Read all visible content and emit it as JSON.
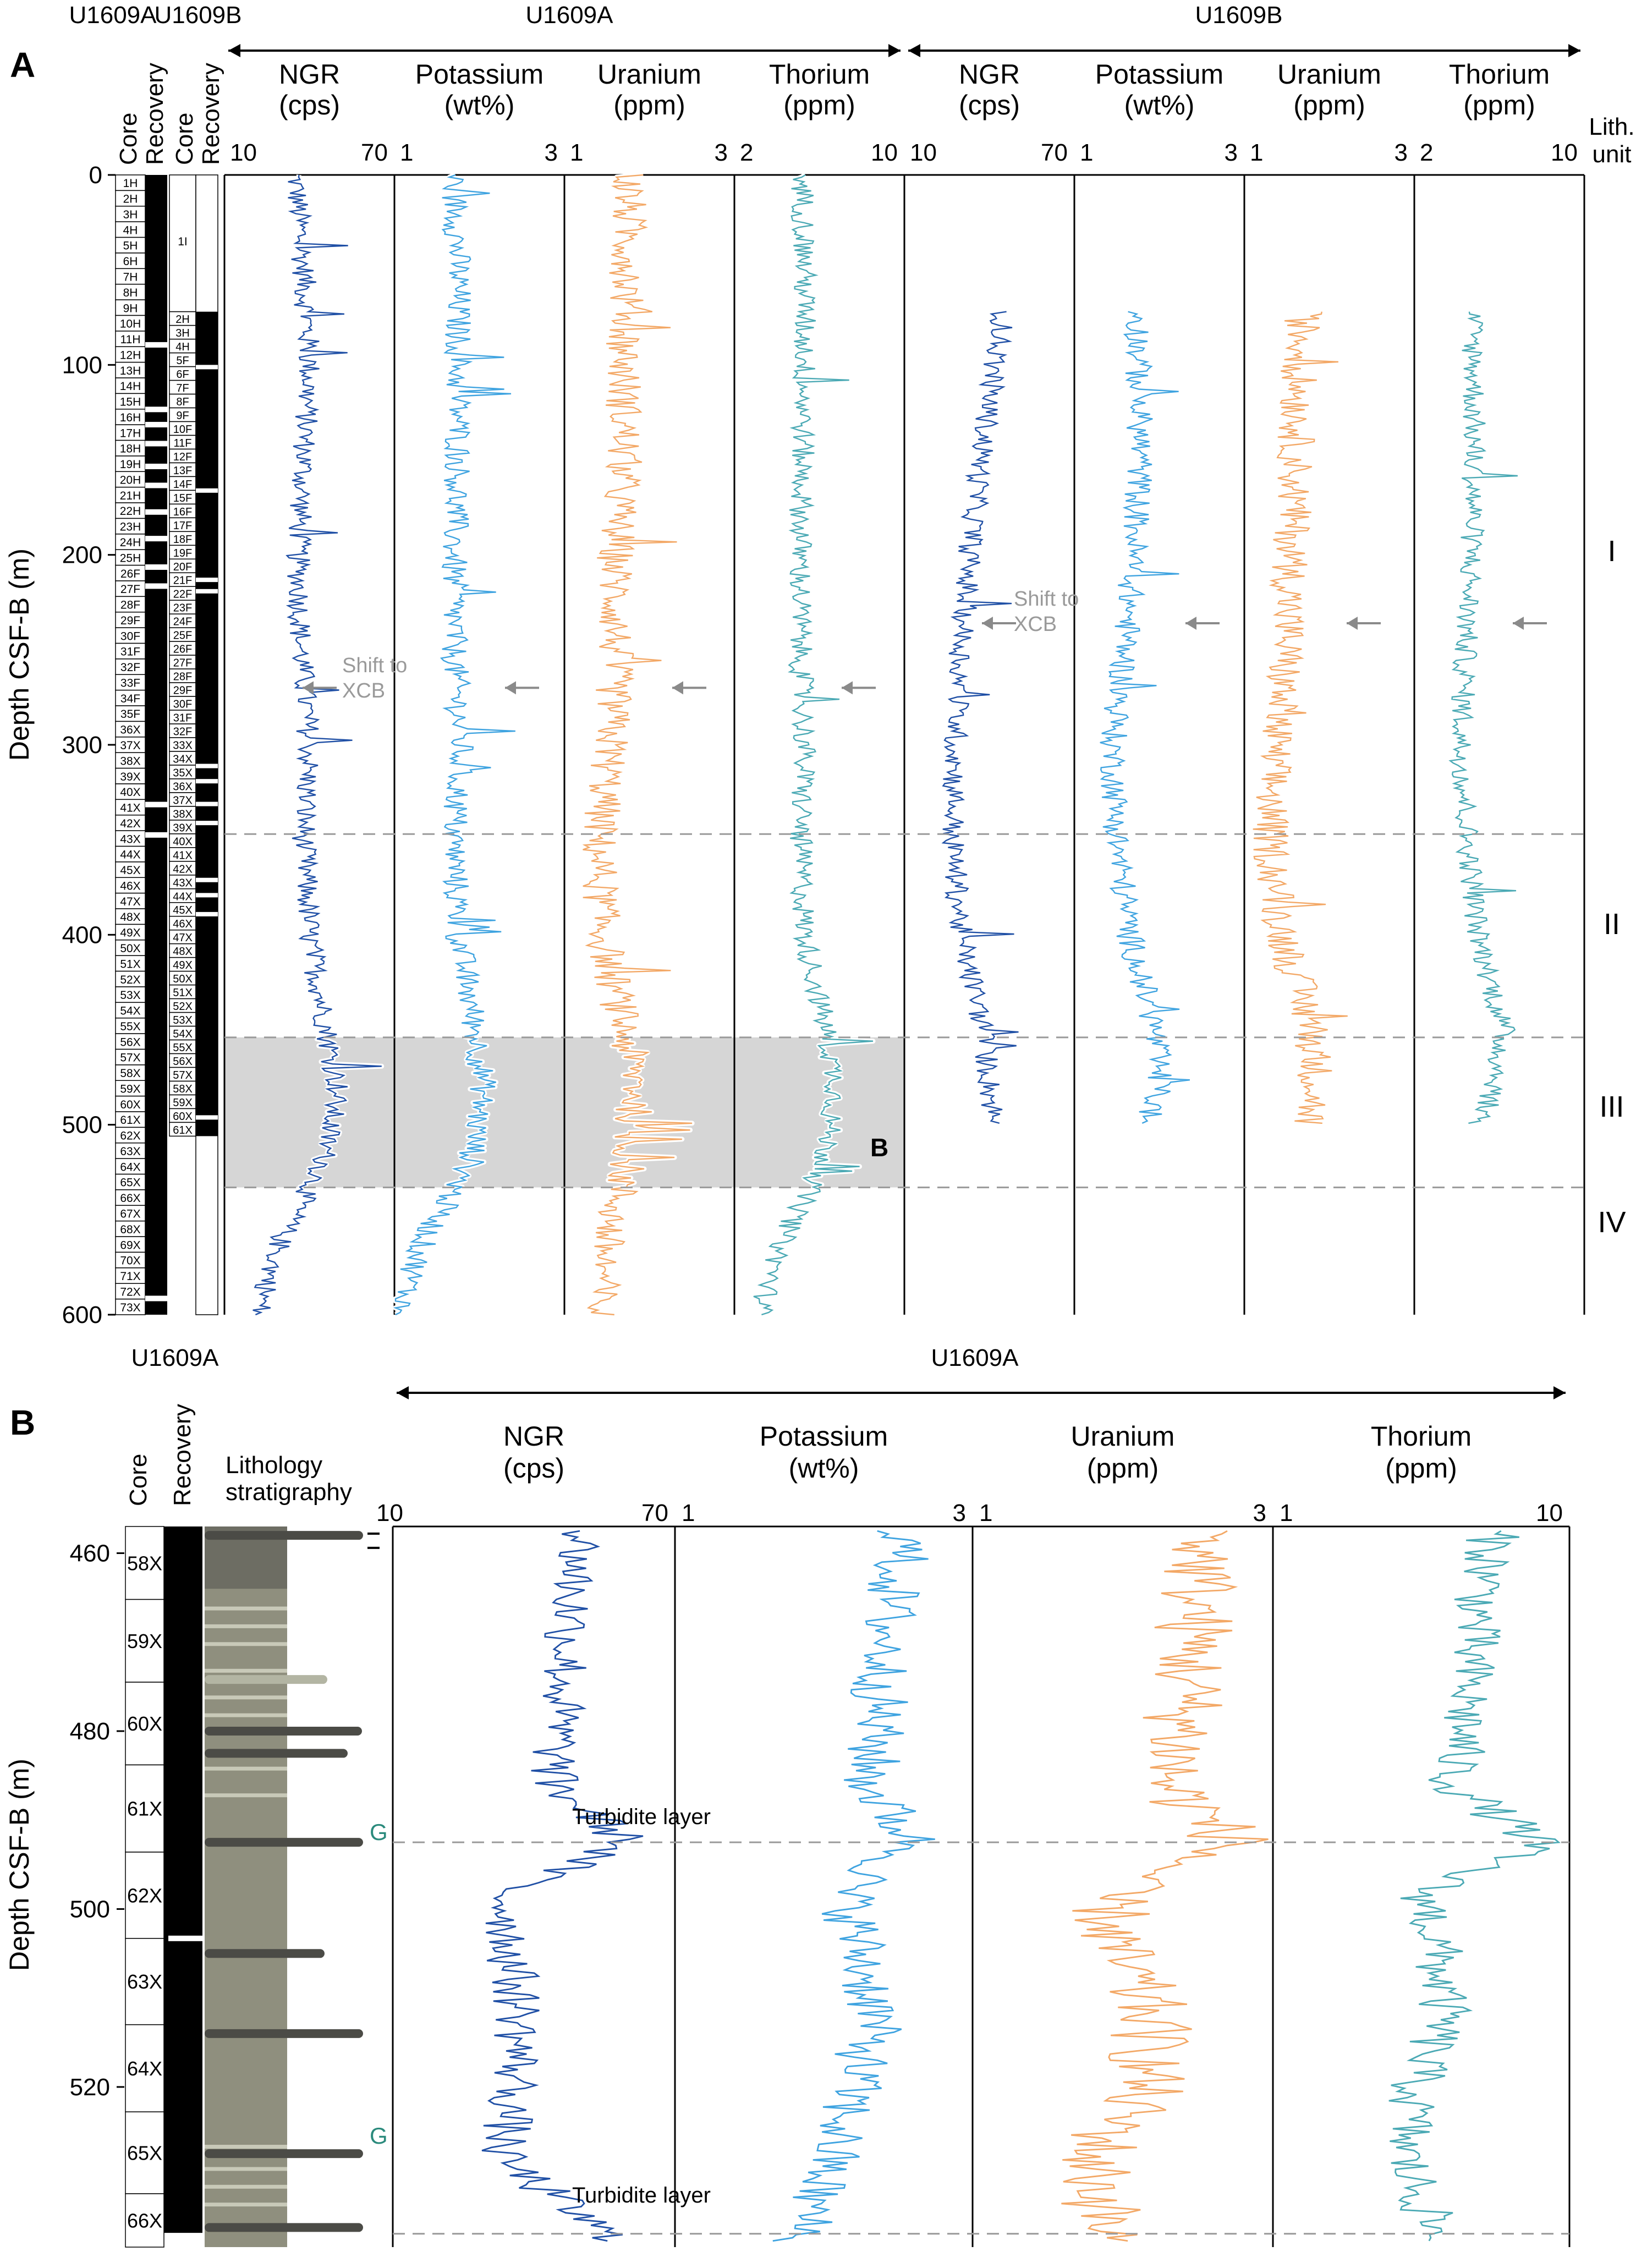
{
  "colors": {
    "ngr": "#1f4fa5",
    "potassium": "#3ea3e0",
    "uranium": "#f3a866",
    "thorium": "#4aa9b4",
    "highlight_band": "#d6d6d6",
    "dashed": "#9a9a9a",
    "arrow": "#8a8a8a",
    "lithology_fill": "#8f8f7e",
    "turbidite_layer": "#4b4b46",
    "glauconite_text": "#2a8a7c"
  },
  "panelA": {
    "label": "A",
    "hole_labels": [
      "U1609A",
      "U1609B"
    ],
    "col_headers": {
      "core": "Core",
      "recovery": "Recovery"
    },
    "group_A_label": "U1609A",
    "group_B_label": "U1609B",
    "lith_unit_header": [
      "Lith.",
      "unit"
    ],
    "ylabel": "Depth CSF-B (m)",
    "y_ticks": [
      "0",
      "100",
      "200",
      "300",
      "400",
      "500",
      "600"
    ],
    "shift_label": [
      "Shift to",
      "XCB"
    ],
    "zoom_label": "B",
    "tracks": [
      {
        "title": "NGR",
        "unit": "(cps)",
        "min": "10",
        "max": "70"
      },
      {
        "title": "Potassium",
        "unit": "(wt%)",
        "min": "1",
        "max": "3"
      },
      {
        "title": "Uranium",
        "unit": "(ppm)",
        "min": "1",
        "max": "3"
      },
      {
        "title": "Thorium",
        "unit": "(ppm)",
        "min": "2",
        "max": "10"
      },
      {
        "title": "NGR",
        "unit": "(cps)",
        "min": "10",
        "max": "70"
      },
      {
        "title": "Potassium",
        "unit": "(wt%)",
        "min": "1",
        "max": "3"
      },
      {
        "title": "Uranium",
        "unit": "(ppm)",
        "min": "1",
        "max": "3"
      },
      {
        "title": "Thorium",
        "unit": "(ppm)",
        "min": "2",
        "max": "10"
      }
    ],
    "lith_units": [
      "I",
      "II",
      "III",
      "IV"
    ],
    "cores_A": [
      "1H",
      "2H",
      "3H",
      "4H",
      "5H",
      "6H",
      "7H",
      "8H",
      "9H",
      "10H",
      "11H",
      "12H",
      "13H",
      "14H",
      "15H",
      "16H",
      "17H",
      "18H",
      "19H",
      "20H",
      "21H",
      "22H",
      "23H",
      "24H",
      "25H",
      "26F",
      "27F",
      "28F",
      "29F",
      "30F",
      "31F",
      "32F",
      "33F",
      "34F",
      "35F",
      "36X",
      "37X",
      "38X",
      "39X",
      "40X",
      "41X",
      "42X",
      "43X",
      "44X",
      "45X",
      "46X",
      "47X",
      "48X",
      "49X",
      "50X",
      "51X",
      "52X",
      "53X",
      "54X",
      "55X",
      "56X",
      "57X",
      "58X",
      "59X",
      "60X",
      "61X",
      "62X",
      "63X",
      "64X",
      "65X",
      "66X",
      "67X",
      "68X",
      "69X",
      "70X",
      "71X",
      "72X",
      "73X"
    ],
    "cores_B": [
      "1I",
      "2H",
      "3H",
      "4H",
      "5F",
      "6F",
      "7F",
      "8F",
      "9F",
      "10F",
      "11F",
      "12F",
      "13F",
      "14F",
      "15F",
      "16F",
      "17F",
      "18F",
      "19F",
      "20F",
      "21F",
      "22F",
      "23F",
      "24F",
      "25F",
      "26F",
      "27F",
      "28F",
      "29F",
      "30F",
      "31F",
      "32F",
      "33X",
      "34X",
      "35X",
      "36X",
      "37X",
      "38X",
      "39X",
      "40X",
      "41X",
      "42X",
      "43X",
      "44X",
      "45X",
      "46X",
      "47X",
      "48X",
      "49X",
      "50X",
      "51X",
      "52X",
      "53X",
      "54X",
      "55X",
      "56X",
      "57X",
      "58X",
      "59X",
      "60X",
      "61X"
    ]
  },
  "panelB": {
    "label": "B",
    "hole_label": "U1609A",
    "group_label": "U1609A",
    "col_headers": {
      "core": "Core",
      "recovery": "Recovery",
      "lithology": [
        "Lithology",
        "stratigraphy"
      ]
    },
    "ylabel": "Depth CSF-B (m)",
    "y_ticks": [
      "460",
      "480",
      "500",
      "520"
    ],
    "tracks": [
      {
        "title": "NGR",
        "unit": "(cps)",
        "min": "10",
        "max": "70"
      },
      {
        "title": "Potassium",
        "unit": "(wt%)",
        "min": "1",
        "max": "3"
      },
      {
        "title": "Uranium",
        "unit": "(ppm)",
        "min": "1",
        "max": "3"
      },
      {
        "title": "Thorium",
        "unit": "(ppm)",
        "min": "1",
        "max": "10"
      }
    ],
    "cores": [
      "58X",
      "59X",
      "60X",
      "61X",
      "62X",
      "63X",
      "64X",
      "65X",
      "66X"
    ],
    "turbidite_label": "Turbidite layer",
    "glauconite_label": "G"
  },
  "chart_data": [
    {
      "type": "line",
      "panel": "A",
      "ylabel": "Depth CSF-B (m)",
      "ylim": [
        0,
        600
      ],
      "y_inverted": true,
      "lith_unit_boundaries_m": [
        347,
        454,
        533
      ],
      "highlight_interval_m": [
        454,
        533
      ],
      "xcb_shift_depth_m": {
        "U1609A": 270,
        "U1609B": 236
      },
      "series": [
        {
          "hole": "U1609A",
          "name": "NGR",
          "unit": "cps",
          "xlim": [
            10,
            70
          ],
          "depth_range_m": [
            0,
            600
          ],
          "depth": [
            0,
            50,
            100,
            150,
            200,
            250,
            300,
            350,
            400,
            450,
            480,
            520,
            560,
            600
          ],
          "values": [
            35,
            38,
            40,
            38,
            36,
            37,
            40,
            38,
            40,
            46,
            50,
            45,
            30,
            22
          ]
        },
        {
          "hole": "U1609A",
          "name": "Potassium",
          "unit": "wt%",
          "xlim": [
            1,
            3
          ],
          "depth_range_m": [
            0,
            600
          ],
          "depth": [
            0,
            50,
            100,
            150,
            200,
            250,
            300,
            350,
            400,
            450,
            480,
            520,
            560,
            600
          ],
          "values": [
            1.7,
            1.75,
            1.75,
            1.75,
            1.7,
            1.7,
            1.78,
            1.7,
            1.75,
            1.95,
            2.05,
            1.9,
            1.35,
            1.05
          ]
        },
        {
          "hole": "U1609A",
          "name": "Uranium",
          "unit": "ppm",
          "xlim": [
            1,
            3
          ],
          "depth_range_m": [
            0,
            600
          ],
          "depth": [
            0,
            50,
            100,
            150,
            200,
            250,
            300,
            350,
            400,
            450,
            480,
            520,
            560,
            600
          ],
          "values": [
            1.75,
            1.75,
            1.7,
            1.7,
            1.6,
            1.6,
            1.55,
            1.4,
            1.45,
            1.7,
            1.85,
            1.75,
            1.5,
            1.4
          ]
        },
        {
          "hole": "U1609A",
          "name": "Thorium",
          "unit": "ppm",
          "xlim": [
            2,
            10
          ],
          "depth_range_m": [
            0,
            600
          ],
          "depth": [
            0,
            50,
            100,
            150,
            200,
            250,
            300,
            350,
            400,
            450,
            480,
            520,
            560,
            600
          ],
          "values": [
            5.2,
            5.3,
            5.3,
            5.2,
            5.1,
            5.1,
            5.3,
            5.1,
            5.3,
            6.3,
            6.8,
            6.2,
            4.3,
            3.2
          ]
        },
        {
          "hole": "U1609B",
          "name": "NGR",
          "unit": "cps",
          "xlim": [
            10,
            70
          ],
          "depth_range_m": [
            72,
            500
          ],
          "depth": [
            72,
            100,
            150,
            200,
            250,
            300,
            350,
            400,
            450,
            480,
            500
          ],
          "values": [
            45,
            42,
            37,
            33,
            30,
            28,
            27,
            30,
            38,
            40,
            42
          ]
        },
        {
          "hole": "U1609B",
          "name": "Potassium",
          "unit": "wt%",
          "xlim": [
            1,
            3
          ],
          "depth_range_m": [
            72,
            500
          ],
          "depth": [
            72,
            100,
            150,
            200,
            250,
            300,
            350,
            400,
            450,
            480,
            500
          ],
          "values": [
            1.75,
            1.75,
            1.78,
            1.7,
            1.6,
            1.45,
            1.5,
            1.65,
            1.95,
            2.0,
            1.85
          ]
        },
        {
          "hole": "U1609B",
          "name": "Uranium",
          "unit": "ppm",
          "xlim": [
            1,
            3
          ],
          "depth_range_m": [
            72,
            500
          ],
          "depth": [
            72,
            100,
            150,
            200,
            250,
            300,
            350,
            400,
            450,
            480,
            500
          ],
          "values": [
            1.7,
            1.65,
            1.6,
            1.55,
            1.5,
            1.35,
            1.3,
            1.45,
            1.8,
            1.85,
            1.75
          ]
        },
        {
          "hole": "U1609B",
          "name": "Thorium",
          "unit": "ppm",
          "xlim": [
            2,
            10
          ],
          "depth_range_m": [
            72,
            500
          ],
          "depth": [
            72,
            100,
            150,
            200,
            250,
            300,
            350,
            400,
            450,
            480,
            500
          ],
          "values": [
            4.7,
            4.8,
            4.8,
            4.7,
            4.4,
            4.2,
            4.5,
            5.0,
            6.2,
            5.8,
            5.0
          ]
        }
      ]
    },
    {
      "type": "line",
      "panel": "B",
      "ylabel": "Depth CSF-B (m)",
      "ylim": [
        457,
        538
      ],
      "y_inverted": true,
      "turbidite_depths_m": [
        492.5,
        536.5
      ],
      "series": [
        {
          "hole": "U1609A",
          "name": "NGR",
          "unit": "cps",
          "xlim": [
            10,
            70
          ],
          "depth": [
            458,
            465,
            472,
            480,
            486,
            492.5,
            498,
            505,
            512,
            520,
            528,
            536.5
          ],
          "values": [
            50,
            48,
            47,
            45,
            44,
            60,
            34,
            35,
            37,
            36,
            33,
            55
          ]
        },
        {
          "hole": "U1609A",
          "name": "Potassium",
          "unit": "wt%",
          "xlim": [
            1,
            3
          ],
          "depth": [
            458,
            465,
            472,
            480,
            486,
            492.5,
            498,
            505,
            512,
            520,
            528,
            536.5
          ],
          "values": [
            2.55,
            2.45,
            2.4,
            2.35,
            2.3,
            2.6,
            2.15,
            2.25,
            2.35,
            2.2,
            2.05,
            1.85
          ]
        },
        {
          "hole": "U1609A",
          "name": "Uranium",
          "unit": "ppm",
          "xlim": [
            1,
            3
          ],
          "depth": [
            458,
            465,
            472,
            480,
            486,
            492.5,
            498,
            505,
            512,
            520,
            528,
            536.5
          ],
          "values": [
            2.55,
            2.5,
            2.45,
            2.4,
            2.3,
            2.75,
            1.9,
            1.95,
            2.2,
            2.15,
            1.8,
            1.9
          ]
        },
        {
          "hole": "U1609A",
          "name": "Thorium",
          "unit": "ppm",
          "xlim": [
            1,
            10
          ],
          "depth": [
            458,
            465,
            472,
            480,
            486,
            492.5,
            498,
            505,
            512,
            520,
            528,
            536.5
          ],
          "values": [
            7.7,
            7.3,
            7.0,
            6.8,
            6.4,
            9.1,
            5.6,
            6.0,
            6.2,
            5.3,
            5.0,
            5.9
          ]
        }
      ]
    }
  ]
}
